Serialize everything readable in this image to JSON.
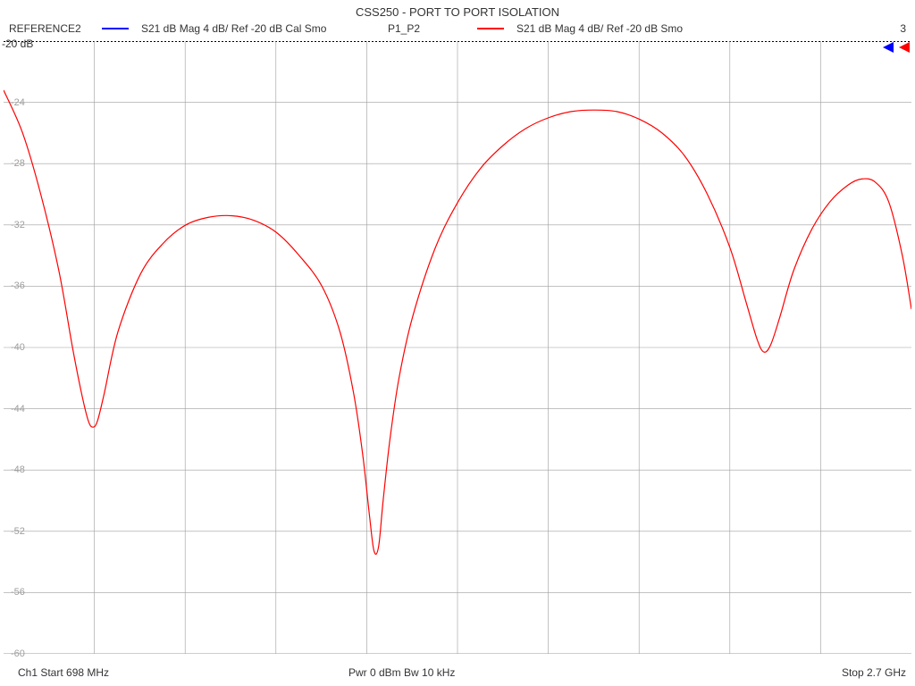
{
  "title": "CSS250 - PORT TO PORT ISOLATION",
  "legend": {
    "trace1_name": "REFERENCE2",
    "trace1_color": "#0000ff",
    "trace1_desc": "S21  dB Mag  4 dB/ Ref -20 dB  Cal Smo",
    "trace2_name": "P1_P2",
    "trace2_color": "#ff0000",
    "trace2_desc": "S21  dB Mag  4 dB/ Ref -20 dB  Smo",
    "marker_right": "3"
  },
  "ref_label": "-20 dB",
  "footer": {
    "start": "Ch1  Start   698 MHz",
    "center": "Pwr   0 dBm  Bw   10 kHz",
    "stop": "Stop   2.7 GHz"
  },
  "chart": {
    "type": "line",
    "x_start_mhz": 698,
    "x_stop_mhz": 2700,
    "x_divisions": 10,
    "y_ref_db": -20,
    "y_per_div_db": 4,
    "y_divisions": 10,
    "ylim_db": [
      -60,
      -20
    ],
    "ytick_step_db": 4,
    "grid_color": "#9e9e9e",
    "background_color": "#ffffff",
    "marker_arrow_colors": [
      "#0000ff",
      "#ff0000"
    ],
    "series": [
      {
        "name": "REFERENCE2",
        "color": "#0000ff",
        "visible_at_ref": true,
        "points_db": []
      },
      {
        "name": "P1_P2",
        "color": "#ff0000",
        "line_width": 1.2,
        "points_db": [
          [
            698,
            -23.2
          ],
          [
            740,
            -26.0
          ],
          [
            780,
            -30.0
          ],
          [
            820,
            -35.0
          ],
          [
            850,
            -40.0
          ],
          [
            870,
            -43.0
          ],
          [
            885,
            -44.8
          ],
          [
            895,
            -45.2
          ],
          [
            905,
            -44.8
          ],
          [
            920,
            -43.0
          ],
          [
            950,
            -39.0
          ],
          [
            1000,
            -35.2
          ],
          [
            1050,
            -33.2
          ],
          [
            1100,
            -32.0
          ],
          [
            1150,
            -31.5
          ],
          [
            1200,
            -31.4
          ],
          [
            1250,
            -31.7
          ],
          [
            1300,
            -32.5
          ],
          [
            1350,
            -34.0
          ],
          [
            1400,
            -36.0
          ],
          [
            1440,
            -39.0
          ],
          [
            1470,
            -43.0
          ],
          [
            1490,
            -47.0
          ],
          [
            1505,
            -51.0
          ],
          [
            1515,
            -53.3
          ],
          [
            1525,
            -53.0
          ],
          [
            1535,
            -50.0
          ],
          [
            1550,
            -46.0
          ],
          [
            1570,
            -42.0
          ],
          [
            1600,
            -38.0
          ],
          [
            1650,
            -33.5
          ],
          [
            1700,
            -30.5
          ],
          [
            1750,
            -28.3
          ],
          [
            1800,
            -26.8
          ],
          [
            1850,
            -25.7
          ],
          [
            1900,
            -25.0
          ],
          [
            1950,
            -24.6
          ],
          [
            2000,
            -24.5
          ],
          [
            2050,
            -24.6
          ],
          [
            2100,
            -25.1
          ],
          [
            2150,
            -26.0
          ],
          [
            2200,
            -27.5
          ],
          [
            2250,
            -30.0
          ],
          [
            2300,
            -33.5
          ],
          [
            2335,
            -37.0
          ],
          [
            2360,
            -39.5
          ],
          [
            2375,
            -40.3
          ],
          [
            2390,
            -39.8
          ],
          [
            2410,
            -38.0
          ],
          [
            2440,
            -35.0
          ],
          [
            2480,
            -32.3
          ],
          [
            2520,
            -30.5
          ],
          [
            2560,
            -29.4
          ],
          [
            2590,
            -29.0
          ],
          [
            2620,
            -29.2
          ],
          [
            2650,
            -30.5
          ],
          [
            2680,
            -34.0
          ],
          [
            2700,
            -37.5
          ]
        ]
      }
    ]
  }
}
